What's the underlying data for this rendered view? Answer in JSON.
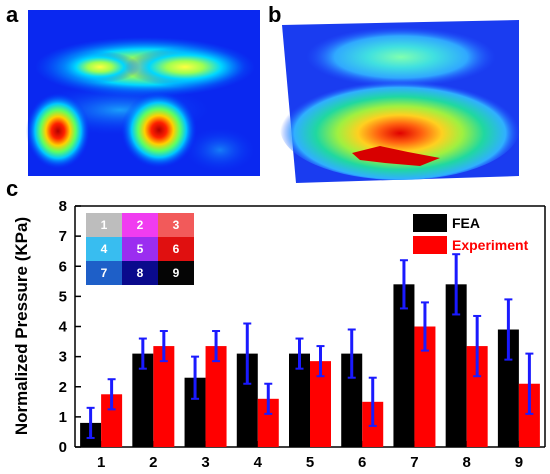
{
  "panels": {
    "a": {
      "label": "a"
    },
    "b": {
      "label": "b"
    },
    "c": {
      "label": "c"
    }
  },
  "sensor_grid": {
    "cells": [
      {
        "label": "1",
        "color": "#bdbdbd",
        "text_color": "#ffffff"
      },
      {
        "label": "2",
        "color": "#f03cf0",
        "text_color": "#ffffff"
      },
      {
        "label": "3",
        "color": "#f25a5a",
        "text_color": "#ffffff"
      },
      {
        "label": "4",
        "color": "#38bdf0",
        "text_color": "#ffffff"
      },
      {
        "label": "5",
        "color": "#9b2df0",
        "text_color": "#ffffff"
      },
      {
        "label": "6",
        "color": "#e01010",
        "text_color": "#ffffff"
      },
      {
        "label": "7",
        "color": "#1e5fc8",
        "text_color": "#ffffff"
      },
      {
        "label": "8",
        "color": "#0a0a8c",
        "text_color": "#ffffff"
      },
      {
        "label": "9",
        "color": "#050505",
        "text_color": "#ffffff"
      }
    ]
  },
  "chart_data": {
    "type": "bar",
    "categories": [
      "1",
      "2",
      "3",
      "4",
      "5",
      "6",
      "7",
      "8",
      "9"
    ],
    "series": [
      {
        "name": "FEA",
        "color": "#000000",
        "values": [
          0.8,
          3.1,
          2.3,
          3.1,
          3.1,
          3.1,
          5.4,
          5.4,
          3.9
        ],
        "errors": [
          0.5,
          0.5,
          0.7,
          1.0,
          0.5,
          0.8,
          0.8,
          1.0,
          1.0
        ]
      },
      {
        "name": "Experiment",
        "color": "#ff0000",
        "values": [
          1.75,
          3.35,
          3.35,
          1.6,
          2.85,
          1.5,
          4.0,
          3.35,
          2.1
        ],
        "errors": [
          0.5,
          0.5,
          0.5,
          0.5,
          0.5,
          0.8,
          0.8,
          1.0,
          1.0
        ]
      }
    ],
    "error_bar_color": "#1a1aff",
    "title": "",
    "xlabel": "",
    "ylabel": "Normalized Pressure (KPa)",
    "ylim": [
      0,
      8
    ],
    "yticks": [
      "0",
      "1",
      "2",
      "3",
      "4",
      "5",
      "6",
      "7",
      "8"
    ],
    "grid": false,
    "legend_position": "top-right",
    "legend": [
      {
        "label": "FEA",
        "color": "#000000",
        "text_color": "#000000"
      },
      {
        "label": "Experiment",
        "color": "#ff0000",
        "text_color": "#ff0000"
      }
    ]
  }
}
